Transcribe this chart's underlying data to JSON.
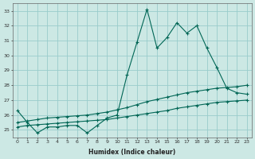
{
  "xlabel": "Humidex (Indice chaleur)",
  "ylabel": "",
  "bg_color": "#cce8e4",
  "grid_color": "#99cccc",
  "line_color": "#006655",
  "x": [
    0,
    1,
    2,
    3,
    4,
    5,
    6,
    7,
    8,
    9,
    10,
    11,
    12,
    13,
    14,
    15,
    16,
    17,
    18,
    19,
    20,
    21,
    22,
    23
  ],
  "line1": [
    26.3,
    25.5,
    24.8,
    25.2,
    25.2,
    25.3,
    25.3,
    24.8,
    25.3,
    25.8,
    26.0,
    28.7,
    30.9,
    33.1,
    30.5,
    31.2,
    32.2,
    31.5,
    32.0,
    30.5,
    29.2,
    27.8,
    27.5,
    27.4
  ],
  "line2": [
    25.5,
    25.6,
    25.7,
    25.8,
    25.85,
    25.9,
    25.95,
    26.0,
    26.1,
    26.2,
    26.35,
    26.5,
    26.7,
    26.9,
    27.05,
    27.2,
    27.35,
    27.5,
    27.6,
    27.7,
    27.8,
    27.85,
    27.9,
    28.0
  ],
  "line3": [
    25.2,
    25.3,
    25.35,
    25.4,
    25.45,
    25.5,
    25.55,
    25.6,
    25.65,
    25.7,
    25.8,
    25.9,
    26.0,
    26.1,
    26.2,
    26.3,
    26.45,
    26.55,
    26.65,
    26.75,
    26.85,
    26.9,
    26.95,
    27.0
  ],
  "ylim": [
    24.5,
    33.5
  ],
  "yticks": [
    25,
    26,
    27,
    28,
    29,
    30,
    31,
    32,
    33
  ],
  "xticks": [
    0,
    1,
    2,
    3,
    4,
    5,
    6,
    7,
    8,
    9,
    10,
    11,
    12,
    13,
    14,
    15,
    16,
    17,
    18,
    19,
    20,
    21,
    22,
    23
  ]
}
